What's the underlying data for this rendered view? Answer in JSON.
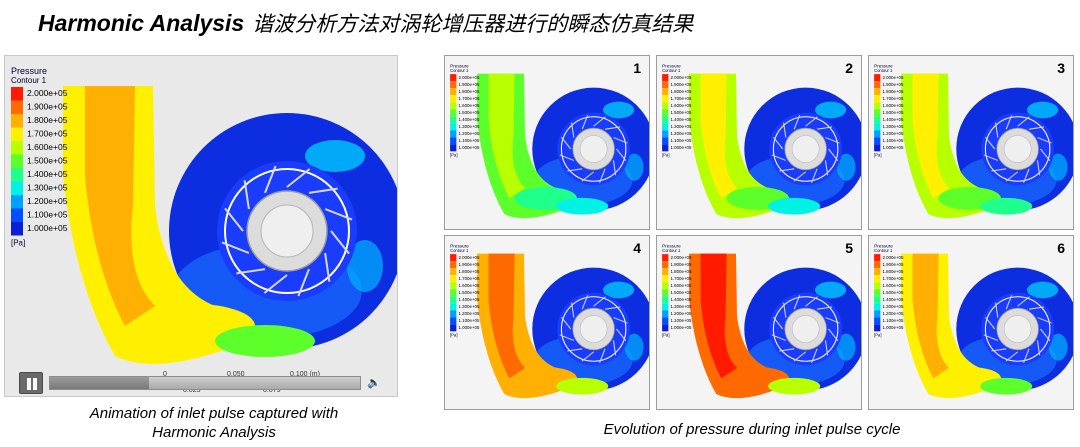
{
  "title": {
    "en": "Harmonic Analysis",
    "cn": "谐波分析方法对涡轮增压器进行的瞬态仿真结果"
  },
  "main_view": {
    "legend_title": "Pressure",
    "legend_subtitle": "Contour 1",
    "legend_values": [
      "2.000e+05",
      "1.900e+05",
      "1.800e+05",
      "1.700e+05",
      "1.600e+05",
      "1.500e+05",
      "1.400e+05",
      "1.300e+05",
      "1.200e+05",
      "1.100e+05",
      "1.000e+05"
    ],
    "legend_unit": "[Pa]",
    "scale_labels": [
      "0",
      "0.050",
      "0.100 (m)",
      "0.025",
      "0.075"
    ]
  },
  "player": {
    "progress": 0.32,
    "volume_icon": "speaker-icon"
  },
  "captions": {
    "left": [
      "Animation of inlet pulse captured with",
      "Harmonic Analysis"
    ],
    "right": "Evolution of pressure during inlet pulse cycle"
  },
  "panels": [
    {
      "number": "1",
      "pulse": 0.15
    },
    {
      "number": "2",
      "pulse": 0.25
    },
    {
      "number": "3",
      "pulse": 0.35
    },
    {
      "number": "4",
      "pulse": 0.85
    },
    {
      "number": "5",
      "pulse": 1.0
    },
    {
      "number": "6",
      "pulse": 0.65
    }
  ],
  "colors": {
    "ramp": [
      "#ff1a00",
      "#ff6a00",
      "#ffb000",
      "#fff000",
      "#b8ff00",
      "#5cff2a",
      "#1fff8c",
      "#00f2e4",
      "#00a0ff",
      "#0050ff",
      "#0a1fd8"
    ],
    "background": "#e9e9e9"
  }
}
